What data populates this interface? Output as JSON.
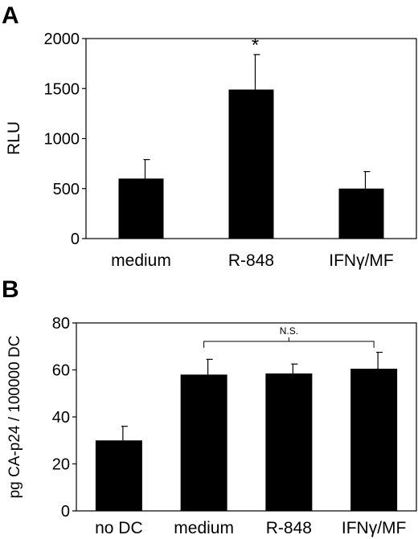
{
  "chart_data": [
    {
      "type": "bar",
      "panel_label": "A",
      "title": "",
      "xlabel": "",
      "ylabel": "RLU",
      "ylim": [
        0,
        2000
      ],
      "yticks": [
        0,
        500,
        1000,
        1500,
        2000
      ],
      "categories": [
        "medium",
        "R-848",
        "IFNγ/MF"
      ],
      "values": [
        600,
        1490,
        500
      ],
      "errors": [
        190,
        350,
        170
      ],
      "annotations": [
        {
          "category": "R-848",
          "text": "*"
        }
      ],
      "grid": false,
      "color": "#000000"
    },
    {
      "type": "bar",
      "panel_label": "B",
      "title": "",
      "xlabel": "",
      "ylabel": "pg CA-p24 / 100000 DC",
      "ylim": [
        0,
        80
      ],
      "yticks": [
        0,
        20,
        40,
        60,
        80
      ],
      "categories": [
        "no DC",
        "medium",
        "R-848",
        "IFNγ/MF"
      ],
      "values": [
        30,
        58,
        58.5,
        60.5
      ],
      "errors": [
        6,
        6.5,
        4,
        7
      ],
      "bracket": {
        "from": "medium",
        "to": "IFNγ/MF",
        "text": "N.S."
      },
      "grid": false,
      "color": "#000000"
    }
  ]
}
